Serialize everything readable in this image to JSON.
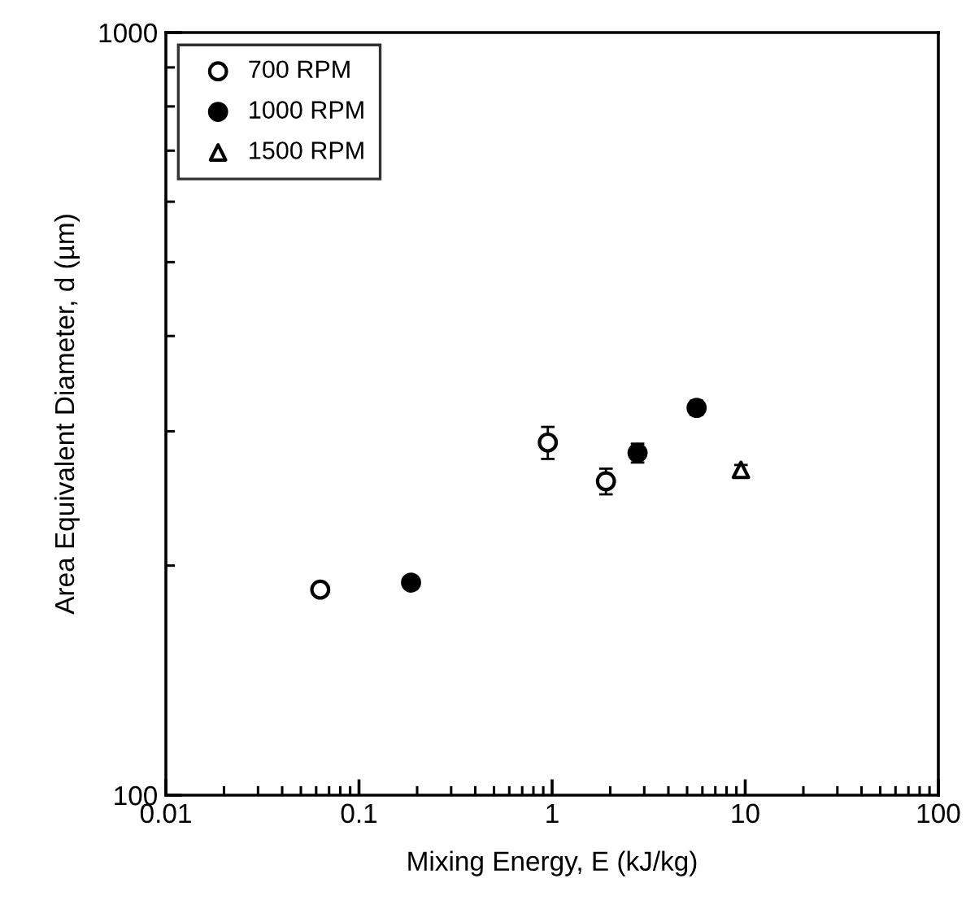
{
  "chart_data": {
    "type": "scatter",
    "xlabel": "Mixing Energy, E (kJ/kg)",
    "ylabel": "Area Equivalent Diameter, d (µm)",
    "series": [
      {
        "name": "700 RPM",
        "color": "#ffffff",
        "marker": "circle",
        "x": [
          0.063,
          0.95,
          1.9
        ],
        "values": [
          186,
          290,
          258
        ],
        "errors": [
          null,
          14,
          10
        ]
      },
      {
        "name": "1000 RPM",
        "color": "#000000",
        "marker": "circle",
        "x": [
          0.186,
          2.77,
          5.6
        ],
        "values": [
          190,
          281,
          322
        ],
        "errors": [
          null,
          8,
          7
        ]
      },
      {
        "name": "1500 RPM",
        "color": "#ffffff",
        "marker": "triangle",
        "x": [
          9.5
        ],
        "values": [
          267
        ],
        "errors": [
          4
        ]
      }
    ],
    "log": "xy",
    "xlim": [
      0.01,
      100
    ],
    "xticks": [
      0.01,
      0.1,
      1,
      10,
      100
    ],
    "ylim": [
      100,
      1000
    ],
    "yticks": [
      100,
      1000
    ],
    "grid": false,
    "legend": "top left"
  }
}
